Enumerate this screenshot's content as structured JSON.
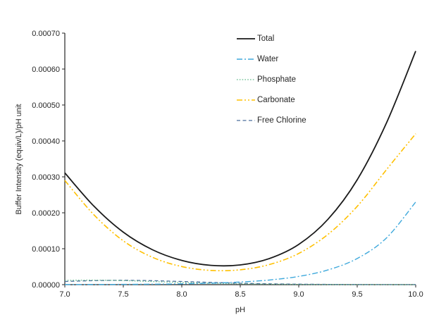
{
  "chart_data": {
    "type": "line",
    "title": "",
    "xlabel": "pH",
    "ylabel": "Buffer Intensity (equiv/L)/pH unit",
    "xlim": [
      7.0,
      10.0
    ],
    "ylim": [
      0,
      0.0007
    ],
    "grid": false,
    "legend_position": "inside-upper-middle",
    "axis_color": "#262626",
    "x_ticks": [
      7.0,
      7.5,
      8.0,
      8.5,
      9.0,
      9.5,
      10.0
    ],
    "x_tick_labels": [
      "7.0",
      "7.5",
      "8.0",
      "8.5",
      "9.0",
      "9.5",
      "10.0"
    ],
    "y_ticks": [
      0,
      0.0001,
      0.0002,
      0.0003,
      0.0004,
      0.0005,
      0.0006,
      0.0007
    ],
    "y_tick_labels": [
      "0.00000",
      "0.00010",
      "0.00020",
      "0.00030",
      "0.00040",
      "0.00050",
      "0.00060",
      "0.00070"
    ],
    "x": [
      7.0,
      7.25,
      7.5,
      7.75,
      8.0,
      8.25,
      8.5,
      8.75,
      9.0,
      9.25,
      9.5,
      9.75,
      10.0
    ],
    "series": [
      {
        "name": "Total",
        "color": "#1a1a1a",
        "style": "solid",
        "values": [
          0.000311,
          0.000218,
          0.000146,
          9.71e-05,
          6.75e-05,
          5.37e-05,
          5.49e-05,
          7.28e-05,
          0.000112,
          0.000182,
          0.000292,
          0.00045,
          0.00065
        ]
      },
      {
        "name": "Water",
        "color": "#3fa9dc",
        "style": "dash-dot",
        "values": [
          4.6e-07,
          5.4e-07,
          8e-07,
          1.3e-06,
          2.3e-06,
          4.1e-06,
          7.3e-06,
          1.3e-05,
          2.3e-05,
          4.1e-05,
          7.28e-05,
          0.00013,
          0.00023
        ]
      },
      {
        "name": "Phosphate",
        "color": "#61b98a",
        "style": "dotted",
        "values": [
          1.2e-05,
          1.26e-05,
          1.13e-05,
          8.7e-06,
          6e-06,
          3.8e-06,
          2.3e-06,
          1.4e-06,
          8e-07,
          4.4e-07,
          2.5e-07,
          1.4e-07,
          8e-08
        ]
      },
      {
        "name": "Carbonate",
        "color": "#ffc000",
        "style": "dash-dot-dot",
        "values": [
          0.00029,
          0.000194,
          0.000122,
          7.6e-05,
          5.04e-05,
          3.96e-05,
          4.13e-05,
          5.6e-05,
          8.69e-05,
          0.00014,
          0.000218,
          0.00032,
          0.00042
        ]
      },
      {
        "name": "Free Chlorine",
        "color": "#4a6e9c",
        "style": "dashed",
        "values": [
          8.8e-06,
          1.11e-05,
          1.21e-05,
          1.11e-05,
          8.8e-06,
          6.2e-06,
          4e-06,
          2.4e-06,
          1.4e-06,
          8.3e-07,
          4.7e-07,
          2.7e-07,
          1.5e-07
        ]
      }
    ]
  }
}
